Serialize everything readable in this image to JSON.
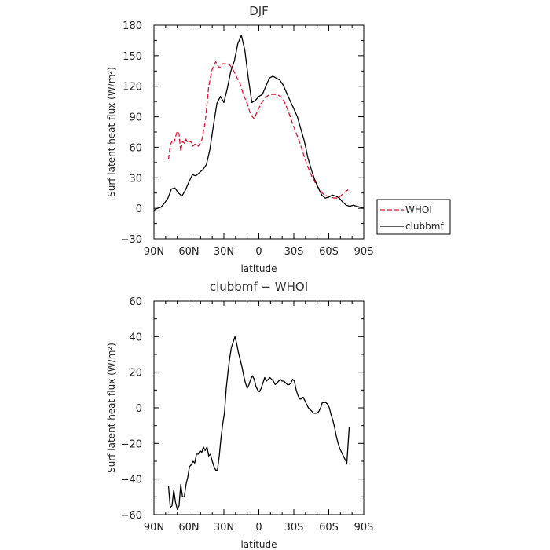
{
  "chart_data": [
    {
      "type": "line",
      "title": "DJF",
      "xlabel": "latitude",
      "ylabel": "Surf latent heat flux (W/m²)",
      "xlim": [
        90,
        -90
      ],
      "ylim": [
        -30,
        180
      ],
      "xtick_values": [
        90,
        60,
        30,
        0,
        -30,
        -60,
        -90
      ],
      "xtick_labels": [
        "90N",
        "60N",
        "30N",
        "0",
        "30S",
        "60S",
        "90S"
      ],
      "ytick_values": [
        -30,
        0,
        30,
        60,
        90,
        120,
        150,
        180
      ],
      "ytick_labels": [
        "−30",
        "0",
        "30",
        "60",
        "90",
        "120",
        "150",
        "180"
      ],
      "grid": false,
      "legend": {
        "placement": "outside-right",
        "entries": [
          "WHOI",
          "clubbmf"
        ]
      },
      "series": [
        {
          "name": "WHOI",
          "color": "#e8112d",
          "dash": "dashed",
          "x": [
            77.5,
            76,
            74.5,
            73,
            71.5,
            70,
            68.5,
            67,
            65.5,
            64,
            62.5,
            61,
            59.5,
            58,
            56.5,
            55,
            53.5,
            52,
            50.5,
            49,
            46,
            43,
            40,
            37,
            34,
            31,
            28,
            25,
            22,
            19,
            16,
            13,
            10,
            7,
            4,
            1,
            -2,
            -5,
            -8,
            -11,
            -14,
            -17,
            -20,
            -23,
            -26,
            -29,
            -32,
            -35,
            -38,
            -41,
            -44,
            -47,
            -50,
            -53,
            -56,
            -59,
            -62,
            -65,
            -68,
            -71,
            -74,
            -77.5
          ],
          "y": [
            48,
            62,
            66,
            64,
            70,
            76,
            73,
            56,
            66,
            64,
            68,
            64,
            66,
            65,
            61,
            63,
            63,
            61,
            64,
            67,
            85,
            120,
            137,
            144,
            138,
            142,
            142,
            141,
            136,
            129,
            122,
            111,
            103,
            92,
            88,
            96,
            103,
            108,
            111,
            112,
            112,
            111,
            109,
            102,
            93,
            83,
            74,
            65,
            54,
            44,
            35,
            28,
            22,
            17,
            13,
            12,
            11,
            10,
            10,
            13,
            16,
            19
          ]
        },
        {
          "name": "clubbmf",
          "color": "#000000",
          "dash": "solid",
          "x": [
            90,
            87,
            84,
            81,
            78,
            75,
            72,
            69,
            66,
            63,
            60,
            57,
            54,
            51,
            48,
            45,
            42,
            39,
            36,
            33,
            30,
            27,
            24,
            21,
            18,
            15,
            12,
            9,
            6,
            3,
            0,
            -3,
            -6,
            -9,
            -12,
            -15,
            -18,
            -21,
            -24,
            -27,
            -30,
            -33,
            -36,
            -39,
            -42,
            -45,
            -48,
            -51,
            -54,
            -57,
            -60,
            -63,
            -66,
            -69,
            -72,
            -75,
            -78,
            -81,
            -84,
            -87,
            -90
          ],
          "y": [
            -2,
            0,
            1,
            5,
            10,
            19,
            20,
            15,
            12,
            18,
            26,
            33,
            32,
            35,
            38,
            43,
            58,
            81,
            103,
            110,
            104,
            118,
            135,
            145,
            162,
            170,
            155,
            128,
            104,
            106,
            110,
            112,
            120,
            128,
            130,
            128,
            126,
            121,
            113,
            105,
            98,
            90,
            78,
            66,
            50,
            38,
            28,
            20,
            13,
            10,
            11,
            13,
            12,
            10,
            6,
            3,
            2,
            3,
            2,
            1,
            0
          ]
        }
      ]
    },
    {
      "type": "line",
      "title": "clubbmf − WHOI",
      "xlabel": "latitude",
      "ylabel": "Surf latent heat flux (W/m²)",
      "xlim": [
        90,
        -90
      ],
      "ylim": [
        -60,
        60
      ],
      "xtick_values": [
        90,
        60,
        30,
        0,
        -30,
        -60,
        -90
      ],
      "xtick_labels": [
        "90N",
        "60N",
        "30N",
        "0",
        "30S",
        "60S",
        "90S"
      ],
      "ytick_values": [
        -60,
        -40,
        -20,
        0,
        20,
        40,
        60
      ],
      "ytick_labels": [
        "−60",
        "−40",
        "−20",
        "0",
        "20",
        "40",
        "60"
      ],
      "grid": false,
      "series": [
        {
          "color": "#000000",
          "dash": "solid",
          "x": [
            77.5,
            76,
            74.5,
            73,
            71.5,
            70,
            68.5,
            67,
            65.5,
            64,
            62.5,
            61,
            59.5,
            58,
            56.5,
            55,
            53.5,
            52,
            50.5,
            49,
            47.5,
            46,
            44.5,
            43,
            41.5,
            40,
            38.5,
            37,
            35.5,
            34,
            32.5,
            31,
            29.5,
            28,
            26.5,
            25,
            23.5,
            22,
            20.5,
            19,
            17.5,
            16,
            14.5,
            13,
            11.5,
            10,
            8.5,
            7,
            5.5,
            4,
            2.5,
            1,
            -0.5,
            -2,
            -3.5,
            -5,
            -6.5,
            -8,
            -9.5,
            -11,
            -12.5,
            -14,
            -15.5,
            -17,
            -18.5,
            -20,
            -21.5,
            -23,
            -24.5,
            -26,
            -27.5,
            -29,
            -30.5,
            -32,
            -33.5,
            -35,
            -36.5,
            -38,
            -39.5,
            -41,
            -42.5,
            -44,
            -45.5,
            -47,
            -48.5,
            -50,
            -51.5,
            -53,
            -54.5,
            -56,
            -57.5,
            -59,
            -60.5,
            -62,
            -63.5,
            -65,
            -66.5,
            -68,
            -69.5,
            -71,
            -72.5,
            -74,
            -75.5,
            -77.5
          ],
          "y": [
            -44,
            -56,
            -55,
            -46,
            -53,
            -57,
            -55,
            -43,
            -50,
            -50,
            -43,
            -39,
            -33,
            -32,
            -30,
            -31,
            -26,
            -26,
            -24,
            -25,
            -22,
            -24,
            -22,
            -27,
            -26,
            -30,
            -33,
            -35,
            -35,
            -27,
            -17,
            -9,
            -3,
            11,
            20,
            28,
            34,
            37,
            40,
            36,
            31,
            27,
            23,
            18,
            14,
            11,
            13,
            16,
            18,
            16,
            12,
            10,
            9,
            11,
            14,
            17,
            15,
            16,
            17,
            16,
            15,
            13,
            14,
            15,
            16,
            15,
            15,
            14,
            13,
            13,
            14,
            16,
            15,
            10,
            7,
            5,
            5,
            6,
            4,
            2,
            0,
            -1,
            -2,
            -3,
            -3,
            -3,
            -2,
            0,
            3,
            3,
            3,
            2,
            0,
            -4,
            -7,
            -11,
            -16,
            -20,
            -23,
            -25,
            -27,
            -29,
            -31,
            -11
          ]
        }
      ]
    }
  ]
}
